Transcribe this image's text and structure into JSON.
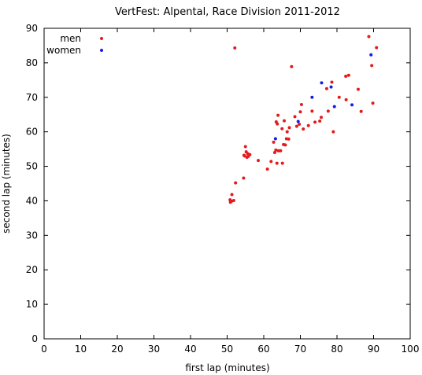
{
  "chart_data": {
    "type": "scatter",
    "title": "VertFest: Alpental, Race Division 2011-2012",
    "xlabel": "first lap (minutes)",
    "ylabel": "second lap (minutes)",
    "xlim": [
      0,
      100
    ],
    "ylim": [
      0,
      90
    ],
    "xticks": [
      0,
      10,
      20,
      30,
      40,
      50,
      60,
      70,
      80,
      90,
      100
    ],
    "yticks": [
      0,
      10,
      20,
      30,
      40,
      50,
      60,
      70,
      80,
      90
    ],
    "grid": false,
    "legend_position": "top-left",
    "series": [
      {
        "name": "men",
        "color": "#e41a1c",
        "points": [
          [
            50.8,
            40.3
          ],
          [
            50.9,
            39.6
          ],
          [
            51.2,
            39.9
          ],
          [
            51.3,
            41.8
          ],
          [
            51.8,
            40.1
          ],
          [
            52.3,
            45.2
          ],
          [
            52.1,
            84.3
          ],
          [
            54.5,
            46.6
          ],
          [
            54.6,
            53.2
          ],
          [
            54.8,
            53.0
          ],
          [
            55.0,
            55.7
          ],
          [
            55.2,
            54.2
          ],
          [
            55.4,
            52.6
          ],
          [
            55.6,
            53.7
          ],
          [
            55.8,
            52.9
          ],
          [
            56.2,
            53.4
          ],
          [
            58.5,
            51.7
          ],
          [
            61.0,
            49.2
          ],
          [
            62.0,
            51.4
          ],
          [
            62.7,
            57.0
          ],
          [
            63.0,
            54.0
          ],
          [
            63.3,
            54.7
          ],
          [
            63.4,
            62.9
          ],
          [
            63.6,
            50.9
          ],
          [
            63.7,
            62.3
          ],
          [
            63.9,
            64.8
          ],
          [
            64.0,
            54.5
          ],
          [
            64.6,
            54.5
          ],
          [
            65.0,
            60.9
          ],
          [
            65.1,
            50.9
          ],
          [
            65.4,
            56.3
          ],
          [
            65.6,
            63.2
          ],
          [
            65.9,
            56.2
          ],
          [
            66.2,
            58.0
          ],
          [
            66.4,
            60.0
          ],
          [
            66.8,
            57.9
          ],
          [
            67.0,
            61.2
          ],
          [
            67.6,
            78.9
          ],
          [
            68.5,
            64.4
          ],
          [
            69.0,
            61.6
          ],
          [
            69.7,
            62.2
          ],
          [
            70.0,
            65.8
          ],
          [
            70.3,
            67.9
          ],
          [
            70.8,
            60.8
          ],
          [
            72.2,
            61.8
          ],
          [
            73.2,
            66.0
          ],
          [
            74.0,
            62.8
          ],
          [
            75.3,
            63.1
          ],
          [
            75.7,
            64.2
          ],
          [
            77.2,
            72.5
          ],
          [
            77.6,
            66.0
          ],
          [
            78.6,
            74.4
          ],
          [
            79.0,
            60.0
          ],
          [
            80.6,
            70.0
          ],
          [
            82.4,
            76.1
          ],
          [
            82.5,
            69.3
          ],
          [
            83.2,
            76.4
          ],
          [
            85.8,
            72.3
          ],
          [
            86.6,
            65.9
          ],
          [
            88.7,
            87.6
          ],
          [
            89.5,
            79.2
          ],
          [
            89.8,
            68.3
          ],
          [
            90.8,
            84.4
          ]
        ]
      },
      {
        "name": "women",
        "color": "#1a1ae4",
        "points": [
          [
            63.2,
            58.0
          ],
          [
            69.4,
            63.0
          ],
          [
            73.2,
            70.0
          ],
          [
            75.8,
            74.2
          ],
          [
            78.4,
            73.0
          ],
          [
            79.3,
            67.3
          ],
          [
            84.1,
            67.8
          ],
          [
            89.3,
            82.3
          ]
        ]
      }
    ]
  }
}
